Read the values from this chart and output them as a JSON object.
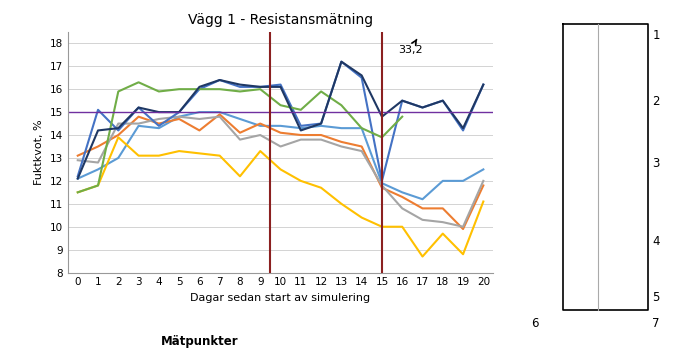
{
  "title": "Vägg 1 - Resistansmätning",
  "xlabel": "Dagar sedan start av simulering",
  "ylabel": "Fuktkvot, %",
  "legend_title": "Mätpunkter",
  "x": [
    0,
    1,
    2,
    3,
    4,
    5,
    6,
    7,
    8,
    9,
    10,
    11,
    12,
    13,
    14,
    15,
    16,
    17,
    18,
    19,
    20
  ],
  "series": {
    "1": [
      12.1,
      12.5,
      13.0,
      14.4,
      14.3,
      14.8,
      15.0,
      15.0,
      14.7,
      14.4,
      14.4,
      14.3,
      14.4,
      14.3,
      14.3,
      11.9,
      11.5,
      11.2,
      12.0,
      12.0,
      12.5
    ],
    "2": [
      13.1,
      13.5,
      14.0,
      14.8,
      14.5,
      14.7,
      14.2,
      14.9,
      14.1,
      14.5,
      14.1,
      14.0,
      14.0,
      13.7,
      13.5,
      11.7,
      11.3,
      10.8,
      10.8,
      9.9,
      11.8
    ],
    "3": [
      12.9,
      12.8,
      14.5,
      14.5,
      14.7,
      14.8,
      14.7,
      14.8,
      13.8,
      14.0,
      13.5,
      13.8,
      13.8,
      13.5,
      13.3,
      11.8,
      10.8,
      10.3,
      10.2,
      10.0,
      12.0
    ],
    "4": [
      11.5,
      11.8,
      13.9,
      13.1,
      13.1,
      13.3,
      13.2,
      13.1,
      12.2,
      13.3,
      12.5,
      12.0,
      11.7,
      11.0,
      10.4,
      10.0,
      10.0,
      8.7,
      9.7,
      8.8,
      11.1
    ],
    "5": [
      12.2,
      15.1,
      14.2,
      15.2,
      14.4,
      15.0,
      16.0,
      16.4,
      16.1,
      16.1,
      16.2,
      14.4,
      14.5,
      17.2,
      16.5,
      12.0,
      15.5,
      15.2,
      15.5,
      14.2,
      16.2
    ],
    "6": [
      11.5,
      11.8,
      15.9,
      16.3,
      15.9,
      16.0,
      16.0,
      16.0,
      15.9,
      16.0,
      15.3,
      15.1,
      15.9,
      15.3,
      14.3,
      13.9,
      14.8,
      33.2,
      33.2,
      33.2,
      33.2
    ],
    "7": [
      12.1,
      14.2,
      14.3,
      15.2,
      15.0,
      15.0,
      16.1,
      16.4,
      16.2,
      16.1,
      16.1,
      14.2,
      14.5,
      17.2,
      16.6,
      14.8,
      15.5,
      15.2,
      15.5,
      14.3,
      16.2
    ]
  },
  "series_colors": {
    "1": "#5B9BD5",
    "2": "#ED7D31",
    "3": "#A5A5A5",
    "4": "#FFC000",
    "5": "#4472C4",
    "6": "#70AD47",
    "7": "#1F3864"
  },
  "vlines": [
    9.5,
    15.0
  ],
  "vline_color": "#8B2020",
  "hline": 15.0,
  "hline_color": "#7030A0",
  "ylim": [
    8,
    18.5
  ],
  "yticks": [
    8,
    9,
    10,
    11,
    12,
    13,
    14,
    15,
    16,
    17,
    18
  ],
  "xticks": [
    0,
    1,
    2,
    3,
    4,
    5,
    6,
    7,
    8,
    9,
    10,
    11,
    12,
    13,
    14,
    15,
    16,
    17,
    18,
    19,
    20
  ]
}
